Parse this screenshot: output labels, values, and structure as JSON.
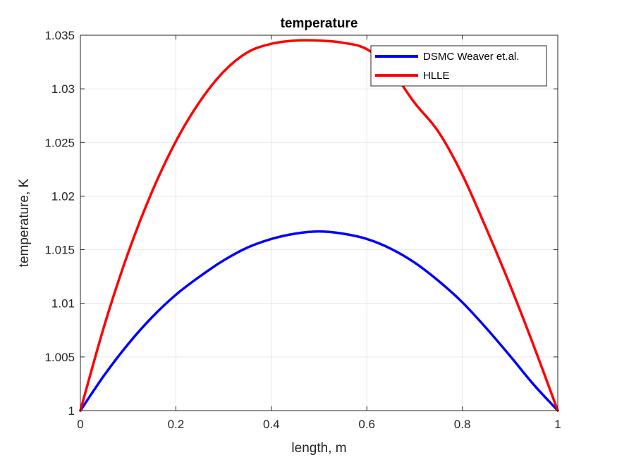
{
  "chart_data": {
    "type": "line",
    "title": "temperature",
    "xlabel": "length, m",
    "ylabel": "temperature, K",
    "xlim": [
      0,
      1
    ],
    "ylim": [
      1,
      1.035
    ],
    "xticks": [
      0,
      0.2,
      0.4,
      0.6,
      0.8,
      1
    ],
    "xtick_labels": [
      "0",
      "0.2",
      "0.4",
      "0.6",
      "0.8",
      "1"
    ],
    "yticks": [
      1,
      1.005,
      1.01,
      1.015,
      1.02,
      1.025,
      1.03,
      1.035
    ],
    "ytick_labels": [
      "1",
      "1.005",
      "1.01",
      "1.015",
      "1.02",
      "1.025",
      "1.03",
      "1.035"
    ],
    "grid": true,
    "legend_position": "top-right",
    "series": [
      {
        "name": "DSMC Weaver et.al.",
        "color": "#0000ff",
        "x": [
          0,
          0.05,
          0.1,
          0.15,
          0.2,
          0.25,
          0.3,
          0.35,
          0.4,
          0.45,
          0.5,
          0.55,
          0.6,
          0.65,
          0.7,
          0.75,
          0.8,
          0.85,
          0.9,
          0.95,
          1
        ],
        "y": [
          1.0,
          1.0033,
          1.0062,
          1.0087,
          1.0108,
          1.0125,
          1.014,
          1.0152,
          1.016,
          1.0165,
          1.0167,
          1.0165,
          1.016,
          1.0151,
          1.0138,
          1.0121,
          1.0101,
          1.0077,
          1.0051,
          1.0024,
          1.0
        ]
      },
      {
        "name": "HLLE",
        "color": "#ff0000",
        "x": [
          0,
          0.05,
          0.1,
          0.15,
          0.2,
          0.25,
          0.3,
          0.35,
          0.4,
          0.45,
          0.5,
          0.55,
          0.6,
          0.65,
          0.7,
          0.75,
          0.8,
          0.85,
          0.9,
          0.95,
          1
        ],
        "y": [
          1.0,
          1.0079,
          1.0147,
          1.0204,
          1.0251,
          1.0288,
          1.0316,
          1.0334,
          1.0342,
          1.0345,
          1.0345,
          1.0343,
          1.0337,
          1.0318,
          1.0287,
          1.026,
          1.022,
          1.017,
          1.0117,
          1.006,
          1.0
        ]
      }
    ]
  }
}
